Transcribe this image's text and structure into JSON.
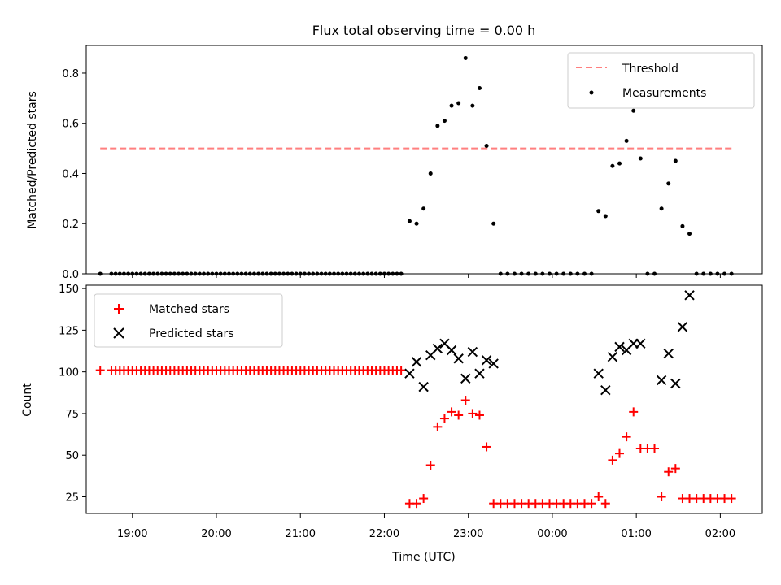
{
  "chart_data": [
    {
      "type": "scatter",
      "title": "Flux total observing time = 0.00 h",
      "ylabel": "Matched/Predicted stars",
      "xlabel": "",
      "xlim": [
        "18:27",
        "02:30"
      ],
      "ylim": [
        0,
        0.91
      ],
      "yticks": [
        0.0,
        0.2,
        0.4,
        0.6,
        0.8
      ],
      "ytick_labels": [
        "0.0",
        "0.2",
        "0.4",
        "0.6",
        "0.8"
      ],
      "legend_position": "top-right",
      "threshold": {
        "name": "Threshold",
        "value": 0.5,
        "x_start": "18:37",
        "x_end": "02:10",
        "color": "#ff7f7f",
        "style": "dashed"
      },
      "series": [
        {
          "name": "Measurements",
          "color": "#000000",
          "marker": "dot",
          "points": [
            [
              "18:37",
              0
            ],
            [
              "18:45",
              0
            ],
            [
              "18:48",
              0
            ],
            [
              "18:51",
              0
            ],
            [
              "18:54",
              0
            ],
            [
              "18:57",
              0
            ],
            [
              "19:00",
              0
            ],
            [
              "19:03",
              0
            ],
            [
              "19:06",
              0
            ],
            [
              "19:09",
              0
            ],
            [
              "19:12",
              0
            ],
            [
              "19:15",
              0
            ],
            [
              "19:18",
              0
            ],
            [
              "19:21",
              0
            ],
            [
              "19:24",
              0
            ],
            [
              "19:27",
              0
            ],
            [
              "19:30",
              0
            ],
            [
              "19:33",
              0
            ],
            [
              "19:36",
              0
            ],
            [
              "19:39",
              0
            ],
            [
              "19:42",
              0
            ],
            [
              "19:45",
              0
            ],
            [
              "19:48",
              0
            ],
            [
              "19:51",
              0
            ],
            [
              "19:54",
              0
            ],
            [
              "19:57",
              0
            ],
            [
              "20:00",
              0
            ],
            [
              "20:03",
              0
            ],
            [
              "20:06",
              0
            ],
            [
              "20:09",
              0
            ],
            [
              "20:12",
              0
            ],
            [
              "20:15",
              0
            ],
            [
              "20:18",
              0
            ],
            [
              "20:21",
              0
            ],
            [
              "20:24",
              0
            ],
            [
              "20:27",
              0
            ],
            [
              "20:30",
              0
            ],
            [
              "20:33",
              0
            ],
            [
              "20:36",
              0
            ],
            [
              "20:39",
              0
            ],
            [
              "20:42",
              0
            ],
            [
              "20:45",
              0
            ],
            [
              "20:48",
              0
            ],
            [
              "20:51",
              0
            ],
            [
              "20:54",
              0
            ],
            [
              "20:57",
              0
            ],
            [
              "21:00",
              0
            ],
            [
              "21:03",
              0
            ],
            [
              "21:06",
              0
            ],
            [
              "21:09",
              0
            ],
            [
              "21:12",
              0
            ],
            [
              "21:15",
              0
            ],
            [
              "21:18",
              0
            ],
            [
              "21:21",
              0
            ],
            [
              "21:24",
              0
            ],
            [
              "21:27",
              0
            ],
            [
              "21:30",
              0
            ],
            [
              "21:33",
              0
            ],
            [
              "21:36",
              0
            ],
            [
              "21:39",
              0
            ],
            [
              "21:42",
              0
            ],
            [
              "21:45",
              0
            ],
            [
              "21:48",
              0
            ],
            [
              "21:51",
              0
            ],
            [
              "21:54",
              0
            ],
            [
              "21:57",
              0
            ],
            [
              "22:00",
              0
            ],
            [
              "22:03",
              0
            ],
            [
              "22:06",
              0
            ],
            [
              "22:09",
              0
            ],
            [
              "22:12",
              0
            ],
            [
              "22:18",
              0.21
            ],
            [
              "22:23",
              0.2
            ],
            [
              "22:28",
              0.26
            ],
            [
              "22:33",
              0.4
            ],
            [
              "22:38",
              0.59
            ],
            [
              "22:43",
              0.61
            ],
            [
              "22:48",
              0.67
            ],
            [
              "22:53",
              0.68
            ],
            [
              "22:58",
              0.86
            ],
            [
              "23:03",
              0.67
            ],
            [
              "23:08",
              0.74
            ],
            [
              "23:13",
              0.51
            ],
            [
              "23:18",
              0.2
            ],
            [
              "23:23",
              0
            ],
            [
              "23:28",
              0
            ],
            [
              "23:33",
              0
            ],
            [
              "23:38",
              0
            ],
            [
              "23:43",
              0
            ],
            [
              "23:48",
              0
            ],
            [
              "23:53",
              0
            ],
            [
              "23:58",
              0
            ],
            [
              "00:03",
              0
            ],
            [
              "00:08",
              0
            ],
            [
              "00:13",
              0
            ],
            [
              "00:18",
              0
            ],
            [
              "00:23",
              0
            ],
            [
              "00:28",
              0
            ],
            [
              "00:33",
              0.25
            ],
            [
              "00:38",
              0.23
            ],
            [
              "00:43",
              0.43
            ],
            [
              "00:48",
              0.44
            ],
            [
              "00:53",
              0.53
            ],
            [
              "00:58",
              0.65
            ],
            [
              "01:03",
              0.46
            ],
            [
              "01:08",
              0
            ],
            [
              "01:13",
              0
            ],
            [
              "01:18",
              0.26
            ],
            [
              "01:23",
              0.36
            ],
            [
              "01:28",
              0.45
            ],
            [
              "01:33",
              0.19
            ],
            [
              "01:38",
              0.16
            ],
            [
              "01:43",
              0
            ],
            [
              "01:48",
              0
            ],
            [
              "01:53",
              0
            ],
            [
              "01:58",
              0
            ],
            [
              "02:03",
              0
            ],
            [
              "02:08",
              0
            ]
          ]
        }
      ]
    },
    {
      "type": "scatter",
      "title": "",
      "ylabel": "Count",
      "xlabel": "Time (UTC)",
      "xlim": [
        "18:27",
        "02:30"
      ],
      "ylim": [
        15,
        152
      ],
      "yticks": [
        25,
        50,
        75,
        100,
        125,
        150
      ],
      "ytick_labels": [
        "25",
        "50",
        "75",
        "100",
        "125",
        "150"
      ],
      "xticks": [
        "19:00",
        "20:00",
        "21:00",
        "22:00",
        "23:00",
        "00:00",
        "01:00",
        "02:00"
      ],
      "legend_position": "top-left",
      "series": [
        {
          "name": "Matched stars",
          "color": "#ff0000",
          "marker": "plus",
          "points": [
            [
              "18:37",
              101
            ],
            [
              "18:45",
              101
            ],
            [
              "18:48",
              101
            ],
            [
              "18:51",
              101
            ],
            [
              "18:54",
              101
            ],
            [
              "18:57",
              101
            ],
            [
              "19:00",
              101
            ],
            [
              "19:03",
              101
            ],
            [
              "19:06",
              101
            ],
            [
              "19:09",
              101
            ],
            [
              "19:12",
              101
            ],
            [
              "19:15",
              101
            ],
            [
              "19:18",
              101
            ],
            [
              "19:21",
              101
            ],
            [
              "19:24",
              101
            ],
            [
              "19:27",
              101
            ],
            [
              "19:30",
              101
            ],
            [
              "19:33",
              101
            ],
            [
              "19:36",
              101
            ],
            [
              "19:39",
              101
            ],
            [
              "19:42",
              101
            ],
            [
              "19:45",
              101
            ],
            [
              "19:48",
              101
            ],
            [
              "19:51",
              101
            ],
            [
              "19:54",
              101
            ],
            [
              "19:57",
              101
            ],
            [
              "20:00",
              101
            ],
            [
              "20:03",
              101
            ],
            [
              "20:06",
              101
            ],
            [
              "20:09",
              101
            ],
            [
              "20:12",
              101
            ],
            [
              "20:15",
              101
            ],
            [
              "20:18",
              101
            ],
            [
              "20:21",
              101
            ],
            [
              "20:24",
              101
            ],
            [
              "20:27",
              101
            ],
            [
              "20:30",
              101
            ],
            [
              "20:33",
              101
            ],
            [
              "20:36",
              101
            ],
            [
              "20:39",
              101
            ],
            [
              "20:42",
              101
            ],
            [
              "20:45",
              101
            ],
            [
              "20:48",
              101
            ],
            [
              "20:51",
              101
            ],
            [
              "20:54",
              101
            ],
            [
              "20:57",
              101
            ],
            [
              "21:00",
              101
            ],
            [
              "21:03",
              101
            ],
            [
              "21:06",
              101
            ],
            [
              "21:09",
              101
            ],
            [
              "21:12",
              101
            ],
            [
              "21:15",
              101
            ],
            [
              "21:18",
              101
            ],
            [
              "21:21",
              101
            ],
            [
              "21:24",
              101
            ],
            [
              "21:27",
              101
            ],
            [
              "21:30",
              101
            ],
            [
              "21:33",
              101
            ],
            [
              "21:36",
              101
            ],
            [
              "21:39",
              101
            ],
            [
              "21:42",
              101
            ],
            [
              "21:45",
              101
            ],
            [
              "21:48",
              101
            ],
            [
              "21:51",
              101
            ],
            [
              "21:54",
              101
            ],
            [
              "21:57",
              101
            ],
            [
              "22:00",
              101
            ],
            [
              "22:03",
              101
            ],
            [
              "22:06",
              101
            ],
            [
              "22:09",
              101
            ],
            [
              "22:12",
              101
            ],
            [
              "22:18",
              21
            ],
            [
              "22:23",
              21
            ],
            [
              "22:28",
              24
            ],
            [
              "22:33",
              44
            ],
            [
              "22:38",
              67
            ],
            [
              "22:43",
              72
            ],
            [
              "22:48",
              76
            ],
            [
              "22:53",
              74
            ],
            [
              "22:58",
              83
            ],
            [
              "23:03",
              75
            ],
            [
              "23:08",
              74
            ],
            [
              "23:13",
              55
            ],
            [
              "23:18",
              21
            ],
            [
              "23:23",
              21
            ],
            [
              "23:28",
              21
            ],
            [
              "23:33",
              21
            ],
            [
              "23:38",
              21
            ],
            [
              "23:43",
              21
            ],
            [
              "23:48",
              21
            ],
            [
              "23:53",
              21
            ],
            [
              "23:58",
              21
            ],
            [
              "00:03",
              21
            ],
            [
              "00:08",
              21
            ],
            [
              "00:13",
              21
            ],
            [
              "00:18",
              21
            ],
            [
              "00:23",
              21
            ],
            [
              "00:28",
              21
            ],
            [
              "00:33",
              25
            ],
            [
              "00:38",
              21
            ],
            [
              "00:43",
              47
            ],
            [
              "00:48",
              51
            ],
            [
              "00:53",
              61
            ],
            [
              "00:58",
              76
            ],
            [
              "01:03",
              54
            ],
            [
              "01:08",
              54
            ],
            [
              "01:13",
              54
            ],
            [
              "01:18",
              25
            ],
            [
              "01:23",
              40
            ],
            [
              "01:28",
              42
            ],
            [
              "01:33",
              24
            ],
            [
              "01:38",
              24
            ],
            [
              "01:43",
              24
            ],
            [
              "01:48",
              24
            ],
            [
              "01:53",
              24
            ],
            [
              "01:58",
              24
            ],
            [
              "02:03",
              24
            ],
            [
              "02:08",
              24
            ]
          ]
        },
        {
          "name": "Predicted stars",
          "color": "#000000",
          "marker": "x",
          "points": [
            [
              "22:18",
              99
            ],
            [
              "22:23",
              106
            ],
            [
              "22:28",
              91
            ],
            [
              "22:33",
              110
            ],
            [
              "22:38",
              114
            ],
            [
              "22:43",
              117
            ],
            [
              "22:48",
              113
            ],
            [
              "22:53",
              108
            ],
            [
              "22:58",
              96
            ],
            [
              "23:03",
              112
            ],
            [
              "23:08",
              99
            ],
            [
              "23:13",
              107
            ],
            [
              "23:18",
              105
            ],
            [
              "00:33",
              99
            ],
            [
              "00:38",
              89
            ],
            [
              "00:43",
              109
            ],
            [
              "00:48",
              115
            ],
            [
              "00:53",
              113
            ],
            [
              "00:58",
              117
            ],
            [
              "01:03",
              117
            ],
            [
              "01:18",
              95
            ],
            [
              "01:23",
              111
            ],
            [
              "01:28",
              93
            ],
            [
              "01:33",
              127
            ],
            [
              "01:38",
              146
            ]
          ]
        }
      ]
    }
  ]
}
